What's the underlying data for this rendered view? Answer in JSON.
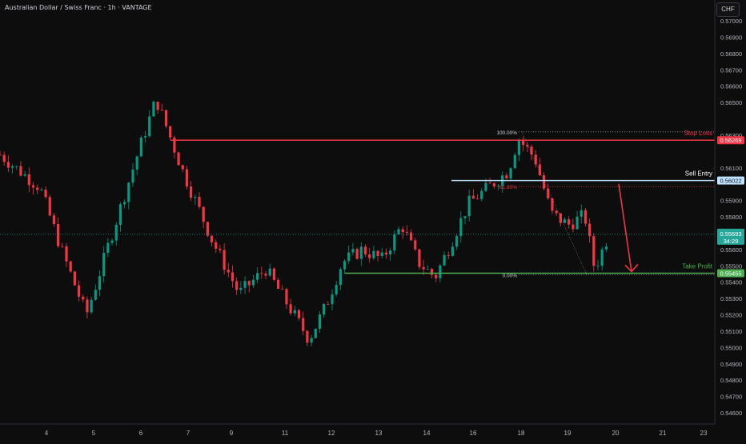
{
  "header": {
    "symbol_title": "Australian Dollar / Swiss Franc · 1h · VANTAGE",
    "currency": "CHF"
  },
  "price_axis": {
    "ticks": [
      "0.57000",
      "0.56900",
      "0.56800",
      "0.56700",
      "0.56600",
      "0.56500",
      "0.56300",
      "0.56100",
      "0.55900",
      "0.55800",
      "0.55600",
      "0.55500",
      "0.55400",
      "0.55300",
      "0.55200",
      "0.55100",
      "0.55000",
      "0.54900",
      "0.54800",
      "0.54700",
      "0.54600"
    ]
  },
  "time_axis": {
    "ticks": [
      "4",
      "5",
      "6",
      "7",
      "9",
      "11",
      "12",
      "13",
      "14",
      "16",
      "18",
      "19",
      "20",
      "21",
      "23"
    ]
  },
  "levels": {
    "stop_loss": {
      "label": "Stop Loss",
      "price": 0.56269,
      "price_text": "0.56269",
      "color": "#f23645"
    },
    "sell_entry": {
      "label": "Sell Entry",
      "price": 0.56022,
      "price_text": "0.56022",
      "color": "#bfe3ff"
    },
    "take_profit": {
      "label": "Take Profit",
      "price": 0.55455,
      "price_text": "0.55455",
      "color": "#4caf50"
    }
  },
  "current_price": {
    "price": 0.55693,
    "price_text": "0.55693",
    "countdown": "34:29",
    "color": "#26a69a"
  },
  "fibonacci": {
    "levels": [
      {
        "label": "100.00%",
        "price": 0.5632
      },
      {
        "label": "61.80%",
        "price": 0.55985
      },
      {
        "label": "0.00%",
        "price": 0.55445
      }
    ]
  },
  "chart_data": {
    "type": "candlestick",
    "title": "Australian Dollar / Swiss Franc · 1h · VANTAGE",
    "ylabel": "CHF",
    "ylim": [
      0.5454,
      0.5704
    ],
    "x_tick_labels": [
      "4",
      "5",
      "6",
      "7",
      "9",
      "11",
      "12",
      "13",
      "14",
      "16",
      "18",
      "19",
      "20",
      "21",
      "23"
    ],
    "y_tick_labels": [
      "0.57000",
      "0.56900",
      "0.56800",
      "0.56700",
      "0.56600",
      "0.56500",
      "0.56300",
      "0.56100",
      "0.55900",
      "0.55800",
      "0.55600",
      "0.55500",
      "0.55400",
      "0.55300",
      "0.55200",
      "0.55100",
      "0.55000",
      "0.54900",
      "0.54800",
      "0.54700",
      "0.54600"
    ],
    "price_path": [
      [
        0.0,
        0.5618
      ],
      [
        1.2,
        0.5598
      ],
      [
        1.9,
        0.5557
      ],
      [
        2.6,
        0.552
      ],
      [
        3.3,
        0.5565
      ],
      [
        4.2,
        0.5622
      ],
      [
        4.7,
        0.5652
      ],
      [
        5.5,
        0.5608
      ],
      [
        6.4,
        0.5565
      ],
      [
        7.2,
        0.5533
      ],
      [
        8.0,
        0.5548
      ],
      [
        8.7,
        0.5525
      ],
      [
        9.3,
        0.5505
      ],
      [
        9.8,
        0.5525
      ],
      [
        10.3,
        0.5552
      ],
      [
        10.9,
        0.556
      ],
      [
        11.5,
        0.5554
      ],
      [
        12.1,
        0.5575
      ],
      [
        12.6,
        0.5552
      ],
      [
        13.1,
        0.5543
      ],
      [
        13.6,
        0.5565
      ],
      [
        14.1,
        0.5588
      ],
      [
        14.7,
        0.5598
      ],
      [
        15.3,
        0.5608
      ],
      [
        15.6,
        0.5628
      ],
      [
        16.1,
        0.5616
      ],
      [
        16.6,
        0.5582
      ],
      [
        17.1,
        0.5575
      ],
      [
        17.6,
        0.5581
      ],
      [
        17.9,
        0.5548
      ],
      [
        18.3,
        0.5568
      ],
      [
        18.6,
        0.5569
      ]
    ],
    "projection_arrow": {
      "from_price": 0.56022,
      "to_price": 0.55455
    }
  }
}
